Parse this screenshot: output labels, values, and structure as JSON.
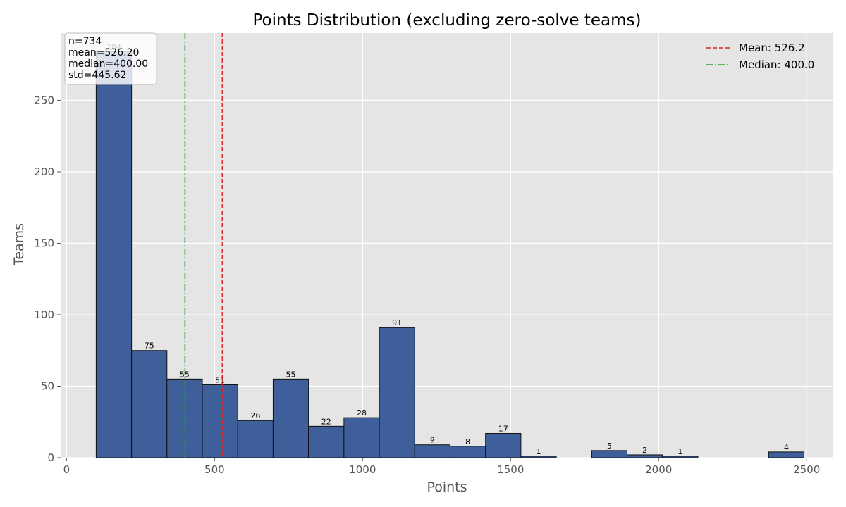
{
  "colors": {
    "plot_background": "#e5e5e5",
    "grid": "#ffffff",
    "bar_fill": "#3f5f9b",
    "bar_edge": "#111111",
    "mean_line": "#d62728",
    "median_line": "#2ca02c"
  },
  "chart_data": {
    "type": "bar",
    "title": "Points Distribution (excluding zero-solve teams)",
    "xlabel": "Points",
    "ylabel": "Teams",
    "xlim": [
      -20,
      2590
    ],
    "ylim": [
      0,
      297
    ],
    "xticks": [
      0,
      500,
      1000,
      1500,
      2000,
      2500
    ],
    "yticks": [
      0,
      50,
      100,
      150,
      200,
      250
    ],
    "grid": true,
    "bins": [
      {
        "start": 100,
        "end": 219.6,
        "count": 284
      },
      {
        "start": 219.6,
        "end": 339.1,
        "count": 75
      },
      {
        "start": 339.1,
        "end": 458.7,
        "count": 55
      },
      {
        "start": 458.7,
        "end": 578.3,
        "count": 51
      },
      {
        "start": 578.3,
        "end": 697.8,
        "count": 26
      },
      {
        "start": 697.8,
        "end": 817.4,
        "count": 55
      },
      {
        "start": 817.4,
        "end": 937.0,
        "count": 22
      },
      {
        "start": 937.0,
        "end": 1056.5,
        "count": 28
      },
      {
        "start": 1056.5,
        "end": 1176.1,
        "count": 91
      },
      {
        "start": 1176.1,
        "end": 1295.7,
        "count": 9
      },
      {
        "start": 1295.7,
        "end": 1415.2,
        "count": 8
      },
      {
        "start": 1415.2,
        "end": 1534.8,
        "count": 17
      },
      {
        "start": 1534.8,
        "end": 1654.3,
        "count": 1
      },
      {
        "start": 1654.3,
        "end": 1773.9,
        "count": 0
      },
      {
        "start": 1773.9,
        "end": 1893.5,
        "count": 5
      },
      {
        "start": 1893.5,
        "end": 2013.0,
        "count": 2
      },
      {
        "start": 2013.0,
        "end": 2132.6,
        "count": 1
      },
      {
        "start": 2132.6,
        "end": 2252.2,
        "count": 0
      },
      {
        "start": 2252.2,
        "end": 2371.7,
        "count": 0
      },
      {
        "start": 2371.7,
        "end": 2491.3,
        "count": 4
      }
    ],
    "mean": 526.2,
    "median": 400.0,
    "legend": [
      {
        "label": "Mean: 526.2",
        "style": "dashed",
        "series": "mean"
      },
      {
        "label": "Median: 400.0",
        "style": "dashdot",
        "series": "median"
      }
    ],
    "legend_position": "top-right",
    "stats_box": [
      "n=734",
      "mean=526.20",
      "median=400.00",
      "std=445.62"
    ],
    "stats_position": "top-left"
  }
}
